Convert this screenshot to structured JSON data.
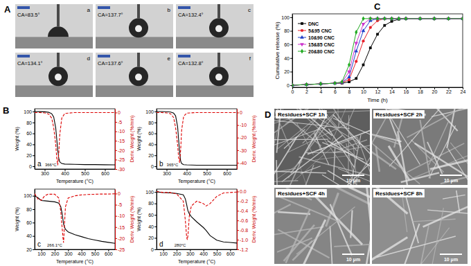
{
  "figure_labels": [
    "A",
    "B",
    "C",
    "D"
  ],
  "contact_angle": {
    "images": [
      {
        "label": "a",
        "text": "CA=83.5°"
      },
      {
        "label": "b",
        "text": "CA=137.7°"
      },
      {
        "label": "c",
        "text": "CA=132.4°"
      },
      {
        "label": "d",
        "text": "CA=134.1°"
      },
      {
        "label": "e",
        "text": "CA=137.6°"
      },
      {
        "label": "f",
        "text": "CA=132.8°"
      }
    ]
  },
  "sem": {
    "images": [
      {
        "label": "Residues+SCF 1h",
        "scale": "10 μm"
      },
      {
        "label": "Residues+SCF 2h",
        "scale": "10 μm"
      },
      {
        "label": "Residues+SCF 4h",
        "scale": "10 μm"
      },
      {
        "label": "Residues+SCF 8h",
        "scale": "10 μm"
      }
    ]
  },
  "chart_data": [
    {
      "type": "line",
      "title": "a",
      "xlabel": "Temperature (°C)",
      "ylabel": "Weight (%)",
      "y2label": "Deriv. Weight (%/min)",
      "x": [
        250,
        275,
        300,
        320,
        335,
        345,
        355,
        360,
        365,
        370,
        375,
        385,
        400,
        450,
        500,
        550,
        600,
        650
      ],
      "xlim": [
        250,
        650
      ],
      "xticks": [
        300,
        400,
        500,
        600
      ],
      "ylim": [
        -5,
        105
      ],
      "yticks": [
        0,
        20,
        40,
        60,
        80,
        100
      ],
      "y2lim": [
        -30,
        2
      ],
      "y2ticks": [
        -30,
        -25,
        -20,
        -15,
        -10,
        -5,
        0
      ],
      "annotations": [
        {
          "text": "366°C",
          "x": 366
        }
      ],
      "series": [
        {
          "color": "#000000",
          "line_style": "solid",
          "values": [
            100,
            99.8,
            99.5,
            98.5,
            96,
            90,
            70,
            50,
            30,
            15,
            8,
            5,
            4,
            3.5,
            3,
            3,
            2.8,
            2.6
          ]
        },
        {
          "color": "#dd0000",
          "line_style": "dashed",
          "axis": "y2",
          "values": [
            0,
            0,
            -0.2,
            -0.8,
            -3,
            -8,
            -17,
            -24,
            -28,
            -22,
            -12,
            -3,
            -0.5,
            0,
            0,
            0,
            0,
            0
          ]
        }
      ]
    },
    {
      "type": "line",
      "title": "b",
      "xlabel": "Temperature (°C)",
      "ylabel": "Weight (%)",
      "y2label": "Deriv. Weight (%/min)",
      "x": [
        250,
        275,
        300,
        320,
        335,
        345,
        355,
        360,
        365,
        370,
        375,
        385,
        400,
        450,
        500,
        550,
        600,
        650
      ],
      "xlim": [
        250,
        650
      ],
      "xticks": [
        300,
        400,
        500,
        600
      ],
      "ylim": [
        -5,
        105
      ],
      "yticks": [
        0,
        20,
        40,
        60,
        80,
        100
      ],
      "y2lim": [
        -45,
        3
      ],
      "y2ticks": [
        -40,
        -30,
        -20,
        -10,
        0
      ],
      "annotations": [
        {
          "text": "365°C",
          "x": 365
        }
      ],
      "series": [
        {
          "color": "#000000",
          "line_style": "solid",
          "values": [
            100,
            99.9,
            99.6,
            99,
            97,
            92,
            72,
            48,
            25,
            10,
            5,
            3,
            2.5,
            2,
            2,
            2,
            2,
            2
          ]
        },
        {
          "color": "#dd0000",
          "line_style": "dashed",
          "axis": "y2",
          "values": [
            0,
            0,
            -0.3,
            -1,
            -4,
            -12,
            -26,
            -36,
            -40,
            -30,
            -14,
            -3,
            -0.5,
            0,
            0,
            0,
            0,
            0
          ]
        }
      ]
    },
    {
      "type": "line",
      "title": "c",
      "xlabel": "Temperature (°C)",
      "ylabel": "Weight (%)",
      "y2label": "Deriv. Weight (%/min)",
      "x": [
        50,
        75,
        100,
        125,
        150,
        200,
        230,
        245,
        255,
        262,
        266,
        272,
        280,
        300,
        350,
        400,
        450,
        500,
        550,
        600,
        650
      ],
      "xlim": [
        50,
        650
      ],
      "xticks": [
        100,
        200,
        300,
        400,
        500,
        600
      ],
      "ylim": [
        20,
        110
      ],
      "yticks": [
        20,
        40,
        60,
        80,
        100
      ],
      "y2lim": [
        -25,
        2
      ],
      "y2ticks": [
        -25,
        -20,
        -15,
        -10,
        -5,
        0
      ],
      "annotations": [
        {
          "text": "266.1°C",
          "x": 266.1
        }
      ],
      "series": [
        {
          "color": "#000000",
          "line_style": "solid",
          "values": [
            100,
            97,
            93,
            92.5,
            92,
            91,
            89,
            84,
            74,
            64,
            58,
            54,
            50,
            46,
            42,
            39,
            36,
            34,
            32,
            30.5,
            29
          ]
        },
        {
          "color": "#dd0000",
          "line_style": "dashed",
          "axis": "y2",
          "values": [
            0,
            -2.5,
            -3,
            -1,
            -0.3,
            -0.3,
            -2,
            -8,
            -15,
            -20,
            -22,
            -15,
            -6,
            -2,
            -1,
            -0.6,
            -0.4,
            -0.3,
            -0.2,
            -0.2,
            -0.1
          ]
        }
      ]
    },
    {
      "type": "line",
      "title": "d",
      "xlabel": "Temperature (°C)",
      "ylabel": "Weight (%)",
      "y2label": "Deriv. Weight (%/min)",
      "x": [
        50,
        100,
        150,
        200,
        250,
        265,
        275,
        280,
        285,
        295,
        310,
        350,
        400,
        420,
        450,
        500,
        550,
        600,
        650
      ],
      "xlim": [
        50,
        650
      ],
      "xticks": [
        100,
        200,
        300,
        400,
        500,
        600
      ],
      "ylim": [
        0,
        105
      ],
      "yticks": [
        0,
        20,
        40,
        60,
        80,
        100
      ],
      "y2lim": [
        -1.2,
        0.05
      ],
      "y2ticks": [
        -1.2,
        {
          "value": -1,
          "label": "-1.0"
        },
        -0.8,
        -0.6,
        -0.4,
        -0.2,
        {
          "value": 0,
          "label": "0.0"
        }
      ],
      "annotations": [
        {
          "text": "280°C",
          "x": 280
        }
      ],
      "series": [
        {
          "color": "#000000",
          "line_style": "solid",
          "values": [
            100,
            99,
            98.5,
            97.5,
            95,
            88,
            78,
            72,
            67,
            62,
            57,
            48,
            38,
            33,
            24,
            16,
            13,
            12,
            11
          ]
        },
        {
          "color": "#dd0000",
          "line_style": "dashed",
          "axis": "y2",
          "values": [
            0,
            -0.02,
            -0.02,
            -0.05,
            -0.2,
            -0.6,
            -0.95,
            -1.0,
            -0.9,
            -0.5,
            -0.3,
            -0.2,
            -0.25,
            -0.3,
            -0.25,
            -0.1,
            -0.03,
            -0.02,
            -0.01
          ]
        }
      ]
    },
    {
      "type": "line",
      "xlabel": "Time (h)",
      "ylabel": "Cumulative release (%)",
      "x": [
        0,
        2,
        4,
        6,
        7,
        8,
        9,
        10,
        11,
        12,
        13,
        14,
        15,
        16,
        18,
        20,
        22,
        24
      ],
      "xlim": [
        0,
        24
      ],
      "xticks": [
        0,
        2,
        4,
        6,
        8,
        10,
        12,
        14,
        16,
        18,
        20,
        22,
        24
      ],
      "ylim": [
        -3,
        105
      ],
      "yticks": [
        0,
        20,
        40,
        60,
        80,
        100
      ],
      "legend": "upper left",
      "series": [
        {
          "name": "DNC",
          "color": "#000000",
          "marker": "square",
          "line_style": "solid",
          "values": [
            0,
            1,
            2,
            3,
            3,
            5,
            10,
            30,
            55,
            75,
            88,
            94,
            97,
            98,
            98,
            98,
            98,
            98
          ]
        },
        {
          "name": "5&95 CNC",
          "color": "#e8202a",
          "marker": "circle",
          "line_style": "solid",
          "values": [
            0,
            1,
            2,
            3,
            4,
            8,
            35,
            65,
            85,
            95,
            98,
            98,
            98,
            98,
            98,
            98,
            98,
            98
          ]
        },
        {
          "name": "10&90 CNC",
          "color": "#1f3ec8",
          "marker": "triangle-up",
          "line_style": "solid",
          "values": [
            0,
            1,
            2,
            3,
            4,
            12,
            50,
            80,
            95,
            98,
            98,
            98,
            98,
            98,
            98,
            98,
            98,
            98
          ]
        },
        {
          "name": "15&85 CNC",
          "color": "#cc33cc",
          "marker": "triangle-down",
          "line_style": "solid",
          "values": [
            0,
            1,
            2,
            3,
            4,
            20,
            62,
            90,
            98,
            98,
            98,
            98,
            98,
            98,
            98,
            98,
            98,
            98
          ]
        },
        {
          "name": "20&80 CNC",
          "color": "#22aa22",
          "marker": "diamond",
          "line_style": "solid",
          "values": [
            0,
            1,
            2,
            3,
            5,
            30,
            78,
            98,
            98,
            98,
            98,
            98,
            98,
            98,
            98,
            98,
            98,
            98
          ]
        }
      ]
    }
  ]
}
